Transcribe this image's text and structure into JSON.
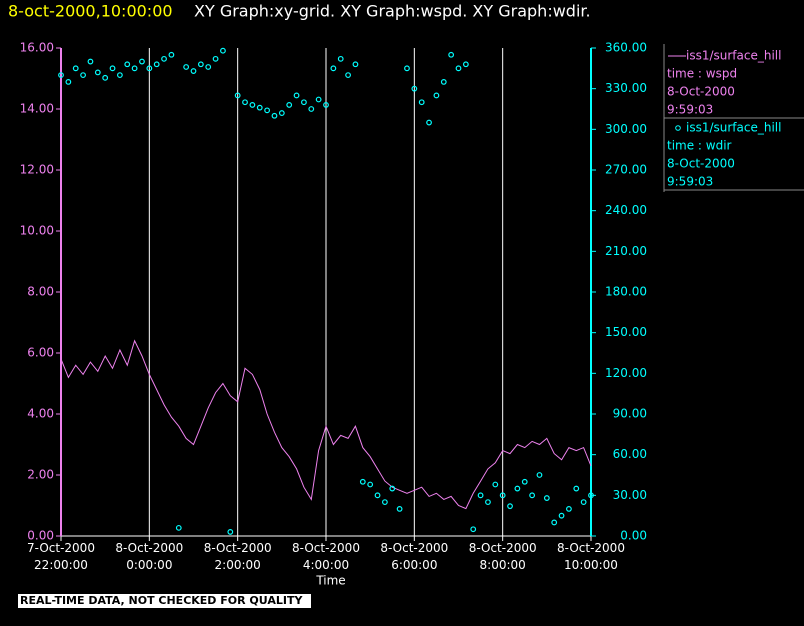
{
  "chart_data": {
    "type": "line+scatter",
    "title": "8-oct-2000,10:00:00",
    "subtitle": "XY Graph:xy-grid.  XY Graph:wspd.  XY Graph:wdir.",
    "xlabel": "Time",
    "footer": "REAL-TIME DATA, NOT CHECKED FOR QUALITY",
    "grid": true,
    "legend": "right",
    "x": [
      "2000-10-07T22:00",
      "2000-10-07T22:10",
      "2000-10-07T22:20",
      "2000-10-07T22:30",
      "2000-10-07T22:40",
      "2000-10-07T22:50",
      "2000-10-07T23:00",
      "2000-10-07T23:10",
      "2000-10-07T23:20",
      "2000-10-07T23:30",
      "2000-10-07T23:40",
      "2000-10-07T23:50",
      "2000-10-08T00:00",
      "2000-10-08T00:10",
      "2000-10-08T00:20",
      "2000-10-08T00:30",
      "2000-10-08T00:40",
      "2000-10-08T00:50",
      "2000-10-08T01:00",
      "2000-10-08T01:10",
      "2000-10-08T01:20",
      "2000-10-08T01:30",
      "2000-10-08T01:40",
      "2000-10-08T01:50",
      "2000-10-08T02:00",
      "2000-10-08T02:10",
      "2000-10-08T02:20",
      "2000-10-08T02:30",
      "2000-10-08T02:40",
      "2000-10-08T02:50",
      "2000-10-08T03:00",
      "2000-10-08T03:10",
      "2000-10-08T03:20",
      "2000-10-08T03:30",
      "2000-10-08T03:40",
      "2000-10-08T03:50",
      "2000-10-08T04:00",
      "2000-10-08T04:10",
      "2000-10-08T04:20",
      "2000-10-08T04:30",
      "2000-10-08T04:40",
      "2000-10-08T04:50",
      "2000-10-08T05:00",
      "2000-10-08T05:10",
      "2000-10-08T05:20",
      "2000-10-08T05:30",
      "2000-10-08T05:40",
      "2000-10-08T05:50",
      "2000-10-08T06:00",
      "2000-10-08T06:10",
      "2000-10-08T06:20",
      "2000-10-08T06:30",
      "2000-10-08T06:40",
      "2000-10-08T06:50",
      "2000-10-08T07:00",
      "2000-10-08T07:10",
      "2000-10-08T07:20",
      "2000-10-08T07:30",
      "2000-10-08T07:40",
      "2000-10-08T07:50",
      "2000-10-08T08:00",
      "2000-10-08T08:10",
      "2000-10-08T08:20",
      "2000-10-08T08:30",
      "2000-10-08T08:40",
      "2000-10-08T08:50",
      "2000-10-08T09:00",
      "2000-10-08T09:10",
      "2000-10-08T09:20",
      "2000-10-08T09:30",
      "2000-10-08T09:40",
      "2000-10-08T09:50",
      "2000-10-08T10:00"
    ],
    "xlim": [
      "2000-10-07T22:00",
      "2000-10-08T10:00"
    ],
    "xticks": [
      {
        "value": "2000-10-07T22:00",
        "label": "7-Oct-2000\n22:00:00"
      },
      {
        "value": "2000-10-08T00:00",
        "label": "8-Oct-2000\n0:00:00"
      },
      {
        "value": "2000-10-08T02:00",
        "label": "8-Oct-2000\n2:00:00"
      },
      {
        "value": "2000-10-08T04:00",
        "label": "8-Oct-2000\n4:00:00"
      },
      {
        "value": "2000-10-08T06:00",
        "label": "8-Oct-2000\n6:00:00"
      },
      {
        "value": "2000-10-08T08:00",
        "label": "8-Oct-2000\n8:00:00"
      },
      {
        "value": "2000-10-08T10:00",
        "label": "8-Oct-2000\n10:00:00"
      }
    ],
    "ylim": [
      0,
      16
    ],
    "yticks": [
      {
        "value": 0,
        "label": "0.00"
      },
      {
        "value": 2,
        "label": "2.00"
      },
      {
        "value": 4,
        "label": "4.00"
      },
      {
        "value": 6,
        "label": "6.00"
      },
      {
        "value": 8,
        "label": "8.00"
      },
      {
        "value": 10,
        "label": "10.00"
      },
      {
        "value": 12,
        "label": "12.00"
      },
      {
        "value": 14,
        "label": "14.00"
      },
      {
        "value": 16,
        "label": "16.00"
      }
    ],
    "y2lim": [
      0,
      360
    ],
    "y2ticks": [
      {
        "value": 0,
        "label": "0.00"
      },
      {
        "value": 30,
        "label": "30.00"
      },
      {
        "value": 60,
        "label": "60.00"
      },
      {
        "value": 90,
        "label": "90.00"
      },
      {
        "value": 120,
        "label": "120.00"
      },
      {
        "value": 150,
        "label": "150.00"
      },
      {
        "value": 180,
        "label": "180.00"
      },
      {
        "value": 210,
        "label": "210.00"
      },
      {
        "value": 240,
        "label": "240.00"
      },
      {
        "value": 270,
        "label": "270.00"
      },
      {
        "value": 300,
        "label": "300.00"
      },
      {
        "value": 330,
        "label": "330.00"
      },
      {
        "value": 360,
        "label": "360.00"
      }
    ],
    "series": [
      {
        "name": "iss1/surface_hill",
        "legend_lines": [
          "time : wspd",
          "8-Oct-2000",
          "9:59:03"
        ],
        "color": "#ee82ee",
        "mark": "line",
        "axis": "y",
        "values": [
          5.8,
          5.2,
          5.6,
          5.3,
          5.7,
          5.4,
          5.9,
          5.5,
          6.1,
          5.6,
          6.4,
          5.9,
          5.3,
          4.8,
          4.3,
          3.9,
          3.6,
          3.2,
          3.0,
          3.6,
          4.2,
          4.7,
          5.0,
          4.6,
          4.4,
          5.5,
          5.3,
          4.8,
          4.0,
          3.4,
          2.9,
          2.6,
          2.2,
          1.6,
          1.2,
          2.8,
          3.6,
          3.0,
          3.3,
          3.2,
          3.6,
          2.9,
          2.6,
          2.2,
          1.8,
          1.6,
          1.5,
          1.4,
          1.5,
          1.6,
          1.3,
          1.4,
          1.2,
          1.3,
          1.0,
          0.9,
          1.4,
          1.8,
          2.2,
          2.4,
          2.8,
          2.7,
          3.0,
          2.9,
          3.1,
          3.0,
          3.2,
          2.7,
          2.5,
          2.9,
          2.8,
          2.9,
          2.3
        ]
      },
      {
        "name": "iss1/surface_hill",
        "legend_lines": [
          "time : wdir",
          "8-Oct-2000",
          "9:59:03"
        ],
        "color": "#00ffff",
        "mark": "scatter",
        "axis": "y2",
        "values": [
          340,
          335,
          345,
          340,
          350,
          342,
          338,
          345,
          340,
          348,
          345,
          350,
          345,
          348,
          352,
          355,
          6,
          346,
          343,
          348,
          346,
          352,
          358,
          3,
          325,
          320,
          318,
          316,
          314,
          310,
          312,
          318,
          325,
          320,
          315,
          322,
          318,
          345,
          352,
          340,
          348,
          40,
          38,
          30,
          25,
          35,
          20,
          345,
          330,
          320,
          305,
          325,
          335,
          355,
          345,
          348,
          5,
          30,
          25,
          38,
          30,
          22,
          35,
          40,
          30,
          45,
          28,
          10,
          15,
          20,
          35,
          25,
          30
        ]
      }
    ]
  }
}
